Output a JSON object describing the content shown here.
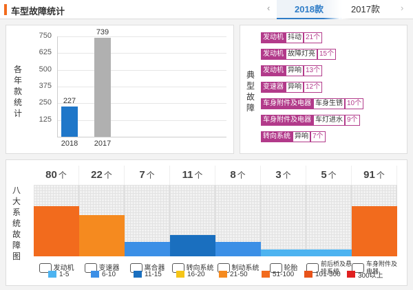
{
  "header": {
    "title": "车型故障统计",
    "prev_icon": "‹",
    "next_icon": "›",
    "tabs": [
      {
        "label": "2018款",
        "active": true
      },
      {
        "label": "2017款",
        "active": false
      }
    ]
  },
  "yearly_chart": {
    "ylabel": "各年款统计",
    "chart_data": {
      "type": "bar",
      "categories": [
        "2018",
        "2017"
      ],
      "values": [
        227,
        739
      ],
      "ylim": [
        0,
        750
      ],
      "yticks": [
        125,
        250,
        375,
        500,
        625,
        750
      ],
      "colors": [
        "#1f77c9",
        "#b0b0b0"
      ]
    }
  },
  "typical_faults": {
    "label": "典型故障",
    "items": [
      {
        "system": "发动机",
        "issue": "抖动",
        "count": "21个"
      },
      {
        "system": "发动机",
        "issue": "故障灯亮",
        "count": "15个"
      },
      {
        "system": "发动机",
        "issue": "异响",
        "count": "13个"
      },
      {
        "system": "变速器",
        "issue": "异响",
        "count": "12个"
      },
      {
        "system": "车身附件及电器",
        "issue": "车身生锈",
        "count": "10个"
      },
      {
        "system": "车身附件及电器",
        "issue": "车灯进水",
        "count": "9个"
      },
      {
        "system": "转向系统",
        "issue": "异响",
        "count": "7个"
      }
    ]
  },
  "eight_systems": {
    "label": "八大系统故障图",
    "unit": "个",
    "systems": [
      {
        "name": "发动机",
        "count": 80,
        "level": 0.7,
        "color": "#f26b1d",
        "icon": "engine-icon"
      },
      {
        "name": "变速器",
        "count": 22,
        "level": 0.58,
        "color": "#f58a1f",
        "icon": "gearbox-icon"
      },
      {
        "name": "离合器",
        "count": 7,
        "level": 0.2,
        "color": "#3b8fe6",
        "icon": "clutch-icon"
      },
      {
        "name": "转向系统",
        "count": 11,
        "level": 0.3,
        "color": "#1a6fbf",
        "icon": "steering-wheel-icon"
      },
      {
        "name": "制动系统",
        "count": 8,
        "level": 0.2,
        "color": "#3b8fe6",
        "icon": "brake-icon"
      },
      {
        "name": "轮胎",
        "count": 3,
        "level": 0.1,
        "color": "#4db3f0",
        "icon": "tire-icon"
      },
      {
        "name": "前后桥及悬挂系统",
        "count": 5,
        "level": 0.1,
        "color": "#4db3f0",
        "icon": "suspension-icon"
      },
      {
        "name": "车身附件及电器",
        "count": 91,
        "level": 0.7,
        "color": "#f26b1d",
        "icon": "battery-icon"
      }
    ],
    "legend": [
      {
        "label": "1-5",
        "color": "#4db3f0"
      },
      {
        "label": "6-10",
        "color": "#3b8fe6"
      },
      {
        "label": "11-15",
        "color": "#1a6fbf"
      },
      {
        "label": "16-20",
        "color": "#f5c518"
      },
      {
        "label": "21-50",
        "color": "#f58a1f"
      },
      {
        "label": "51-100",
        "color": "#f26b1d"
      },
      {
        "label": "101-300",
        "color": "#e8531a"
      },
      {
        "label": "300以上",
        "color": "#e02020"
      }
    ]
  }
}
